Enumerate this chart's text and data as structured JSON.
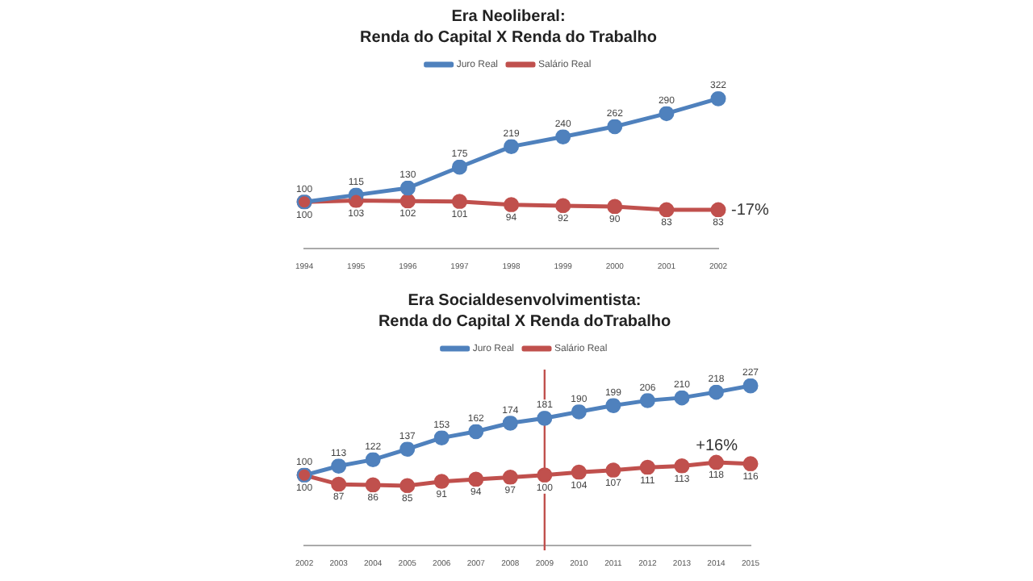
{
  "chart_data": [
    {
      "type": "line",
      "title": "Era Neoliberal:",
      "subtitle": "Renda do Capital X Renda do Trabalho",
      "categories": [
        "1994",
        "1995",
        "1996",
        "1997",
        "1998",
        "1999",
        "2000",
        "2001",
        "2002"
      ],
      "series": [
        {
          "name": "Juro Real",
          "color": "#4f81bd",
          "values": [
            100,
            115,
            130,
            175,
            219,
            240,
            262,
            290,
            322
          ]
        },
        {
          "name": "Salário Real",
          "color": "#c0504d",
          "values": [
            100,
            103,
            102,
            101,
            94,
            92,
            90,
            83,
            83
          ]
        }
      ],
      "tick_labels": "x",
      "data_labels": true,
      "legend": "top",
      "marker": "circle",
      "grid": false,
      "annotations": [
        {
          "text": "-17%",
          "x": "2002",
          "y": 83
        }
      ]
    },
    {
      "type": "line",
      "title": "Era Socialdesenvolvimentista:",
      "subtitle": "Renda do Capital X Renda doTrabalho",
      "categories": [
        "2002",
        "2003",
        "2004",
        "2005",
        "2006",
        "2007",
        "2008",
        "2009",
        "2010",
        "2011",
        "2012",
        "2013",
        "2014",
        "2015"
      ],
      "series": [
        {
          "name": "Juro Real",
          "color": "#4f81bd",
          "values": [
            100,
            113,
            122,
            137,
            153,
            162,
            174,
            181,
            190,
            199,
            206,
            210,
            218,
            227
          ]
        },
        {
          "name": "Salário Real",
          "color": "#c0504d",
          "values": [
            100,
            87,
            86,
            85,
            91,
            94,
            97,
            100,
            104,
            107,
            111,
            113,
            118,
            116
          ]
        }
      ],
      "tick_labels": "x",
      "data_labels": true,
      "legend": "top",
      "marker": "circle",
      "grid": false,
      "annotations": [
        {
          "text": "+16%",
          "x": "2015",
          "y": 116
        }
      ],
      "ref_lines": [
        {
          "axis": "x",
          "value": "2009",
          "color": "#c0504d"
        }
      ]
    }
  ]
}
